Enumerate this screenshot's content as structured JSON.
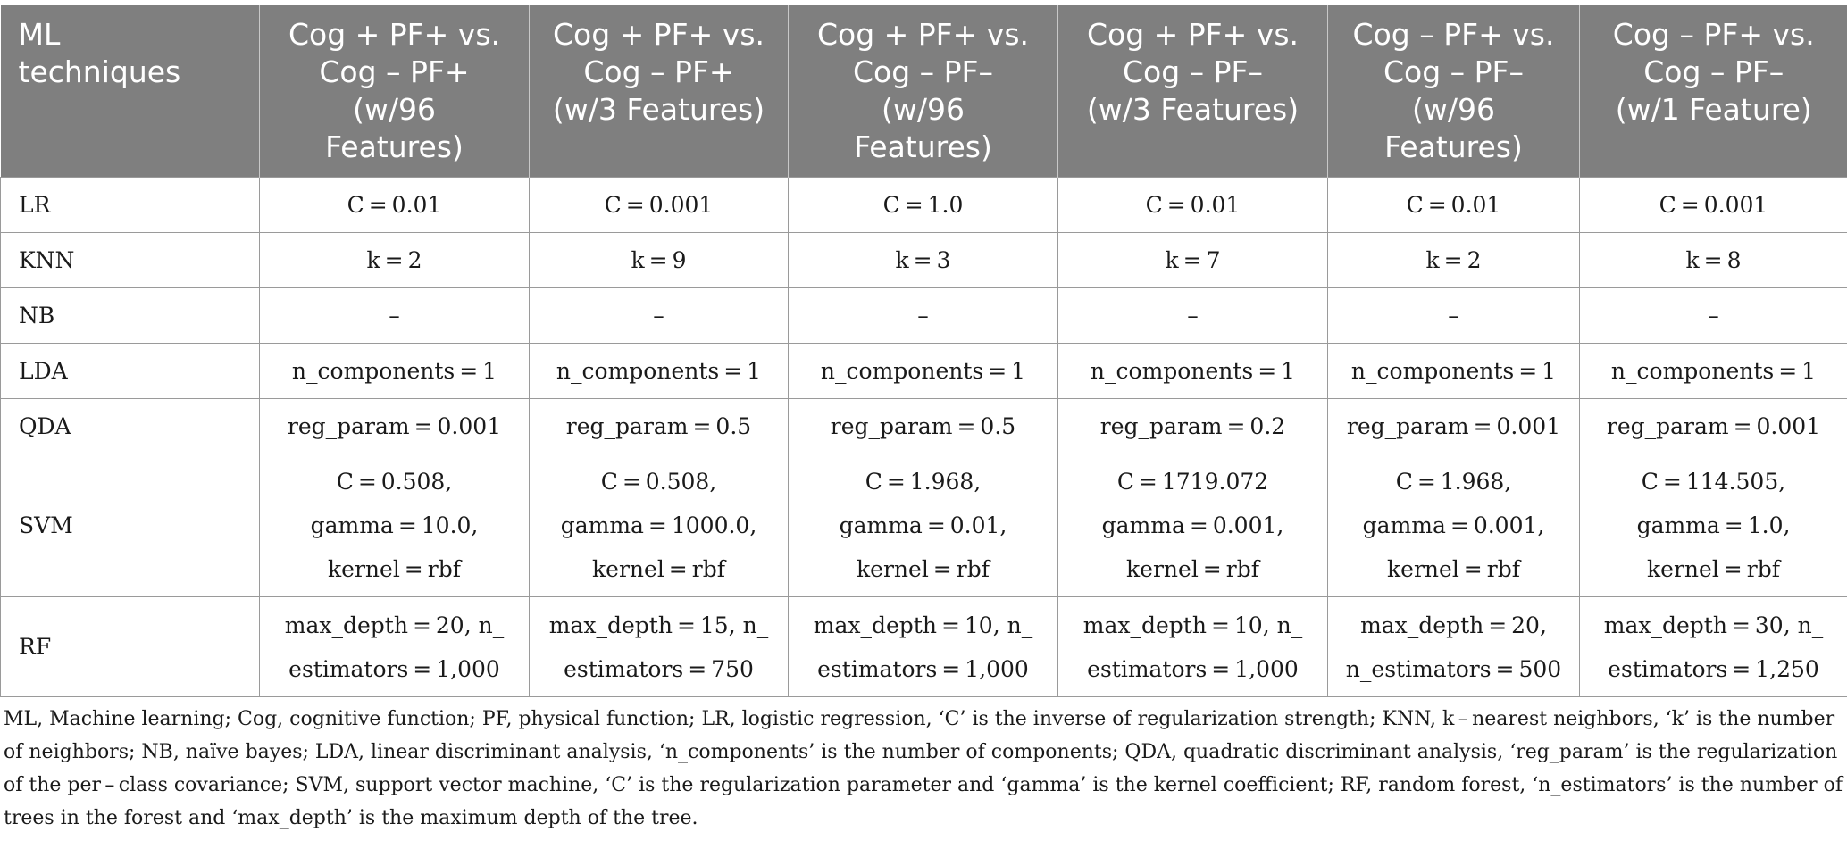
{
  "table": {
    "headers": [
      [
        "ML",
        "techniques"
      ],
      [
        "Cog + PF+ vs.",
        "Cog – PF+",
        "(w/96",
        "Features)"
      ],
      [
        "Cog + PF+ vs.",
        "Cog – PF+",
        "(w/3 Features)"
      ],
      [
        "Cog + PF+ vs.",
        "Cog – PF–",
        "(w/96",
        "Features)"
      ],
      [
        "Cog + PF+ vs.",
        "Cog – PF–",
        "(w/3 Features)"
      ],
      [
        "Cog – PF+ vs.",
        "Cog – PF–",
        "(w/96",
        "Features)"
      ],
      [
        "Cog – PF+ vs.",
        "Cog – PF–",
        "(w/1 Feature)"
      ]
    ],
    "rows": [
      {
        "tech": "LR",
        "cells": [
          [
            "C = 0.01"
          ],
          [
            "C = 0.001"
          ],
          [
            "C = 1.0"
          ],
          [
            "C = 0.01"
          ],
          [
            "C = 0.01"
          ],
          [
            "C = 0.001"
          ]
        ]
      },
      {
        "tech": "KNN",
        "cells": [
          [
            "k = 2"
          ],
          [
            "k = 9"
          ],
          [
            "k = 3"
          ],
          [
            "k = 7"
          ],
          [
            "k = 2"
          ],
          [
            "k = 8"
          ]
        ]
      },
      {
        "tech": "NB",
        "cells": [
          [
            "–"
          ],
          [
            "–"
          ],
          [
            "–"
          ],
          [
            "–"
          ],
          [
            "–"
          ],
          [
            "–"
          ]
        ]
      },
      {
        "tech": "LDA",
        "cells": [
          [
            "n_components = 1"
          ],
          [
            "n_components = 1"
          ],
          [
            "n_components = 1"
          ],
          [
            "n_components = 1"
          ],
          [
            "n_components = 1"
          ],
          [
            "n_components = 1"
          ]
        ]
      },
      {
        "tech": "QDA",
        "cells": [
          [
            "reg_param = 0.001"
          ],
          [
            "reg_param = 0.5"
          ],
          [
            "reg_param = 0.5"
          ],
          [
            "reg_param = 0.2"
          ],
          [
            "reg_param = 0.001"
          ],
          [
            "reg_param = 0.001"
          ]
        ]
      },
      {
        "tech": "SVM",
        "cells": [
          [
            "C = 0.508,",
            "gamma = 10.0,",
            "kernel = rbf"
          ],
          [
            "C = 0.508,",
            "gamma = 1000.0,",
            "kernel = rbf"
          ],
          [
            "C = 1.968,",
            "gamma = 0.01,",
            "kernel = rbf"
          ],
          [
            "C = 1719.072",
            "gamma = 0.001,",
            "kernel = rbf"
          ],
          [
            "C = 1.968,",
            "gamma = 0.001,",
            "kernel = rbf"
          ],
          [
            "C = 114.505,",
            "gamma = 1.0,",
            "kernel = rbf"
          ]
        ]
      },
      {
        "tech": "RF",
        "cells": [
          [
            "max_depth = 20, n_",
            "estimators = 1,000"
          ],
          [
            "max_depth = 15, n_",
            "estimators = 750"
          ],
          [
            "max_depth = 10, n_",
            "estimators = 1,000"
          ],
          [
            "max_depth = 10, n_",
            "estimators = 1,000"
          ],
          [
            "max_depth = 20,",
            "n_estimators = 500"
          ],
          [
            "max_depth = 30, n_",
            "estimators = 1,250"
          ]
        ]
      }
    ]
  },
  "footnote": "ML, Machine learning; Cog, cognitive function; PF, physical function; LR, logistic regression, ‘C’ is the inverse of regularization strength; KNN, k – nearest neighbors, ‘k’ is the number of neighbors; NB, naïve bayes; LDA, linear discriminant analysis, ‘n_components’ is the number of components; QDA, quadratic discriminant analysis, ‘reg_param’ is the regularization of the per – class covariance; SVM, support vector machine, ‘C’ is the regularization parameter and ‘gamma’ is the kernel coefficient; RF, random forest, ‘n_estimators’ is the number of trees in the forest and ‘max_depth’ is the maximum depth of the tree."
}
